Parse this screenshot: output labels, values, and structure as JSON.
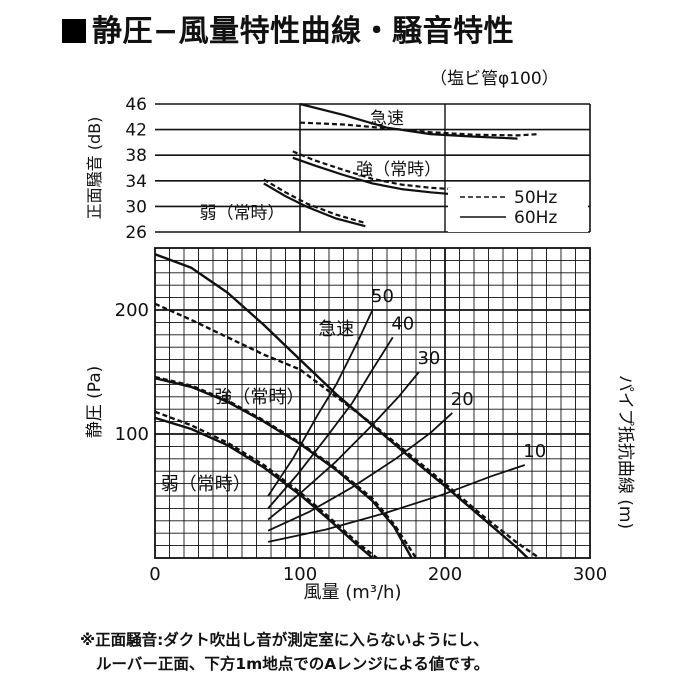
{
  "title": "静圧−風量特性曲線・騒音特性",
  "pipe_note": "（塩ビ管φ100）",
  "footnote": {
    "line1": "※正面騒音:ダクト吹出し音が測定室に入らないようにし、",
    "line2": "ルーバー正面、下方1m地点でのAレンジによる値です。"
  },
  "chart_data": [
    {
      "type": "line",
      "name": "noise",
      "ylabel": "正面騒音 (dB)",
      "x_ticks": [
        0,
        100,
        200,
        300
      ],
      "y_ticks": [
        26,
        30,
        34,
        38,
        42,
        46
      ],
      "xlim": [
        0,
        300
      ],
      "ylim": [
        26,
        46
      ],
      "grid": true,
      "legend": {
        "placement": "bottom-right",
        "entries": [
          {
            "label": "50Hz",
            "style": "dashed"
          },
          {
            "label": "60Hz",
            "style": "solid"
          }
        ]
      },
      "annotations": [
        "急速",
        "強（常時）",
        "弱（常時）"
      ],
      "series": [
        {
          "mode": "急速",
          "freq": "60Hz",
          "x": [
            100,
            130,
            160,
            190,
            220,
            250
          ],
          "y": [
            46,
            44.3,
            42.3,
            41.3,
            40.9,
            40.6
          ]
        },
        {
          "mode": "急速",
          "freq": "50Hz",
          "x": [
            100,
            130,
            160,
            190,
            220,
            250,
            265
          ],
          "y": [
            43.1,
            42.8,
            42.2,
            41.6,
            41.2,
            41.1,
            41.3
          ]
        },
        {
          "mode": "強（常時）",
          "freq": "60Hz",
          "x": [
            95,
            110,
            130,
            150,
            170,
            190,
            205
          ],
          "y": [
            37.6,
            36.4,
            34.9,
            33.6,
            32.7,
            32.2,
            31.9
          ]
        },
        {
          "mode": "強（常時）",
          "freq": "50Hz",
          "x": [
            95,
            110,
            130,
            150,
            170,
            190,
            205
          ],
          "y": [
            38.6,
            37.2,
            35.7,
            34.3,
            33.4,
            32.9,
            32.7
          ]
        },
        {
          "mode": "弱（常時）",
          "freq": "60Hz",
          "x": [
            75,
            90,
            105,
            125,
            145
          ],
          "y": [
            33.6,
            31.6,
            29.9,
            28.1,
            26.9
          ]
        },
        {
          "mode": "弱（常時）",
          "freq": "50Hz",
          "x": [
            75,
            90,
            105,
            125,
            145
          ],
          "y": [
            34.2,
            32.2,
            30.4,
            28.7,
            27.4
          ]
        }
      ]
    },
    {
      "type": "line",
      "name": "pressure",
      "ylabel": "静圧 (Pa)",
      "xlabel": "風量 (m³/h)",
      "y2label": "パイプ抵抗曲線 (m)",
      "x_ticks": [
        0,
        100,
        200,
        300
      ],
      "y_ticks": [
        0,
        100,
        200
      ],
      "xlim": [
        0,
        300
      ],
      "ylim": [
        0,
        250
      ],
      "grid": true,
      "annotations": [
        "急速",
        "強（常時）",
        "弱（常時）"
      ],
      "series": [
        {
          "mode": "急速",
          "freq": "60Hz",
          "x": [
            0,
            25,
            50,
            75,
            100,
            125,
            150,
            175,
            200,
            225,
            250,
            257
          ],
          "y": [
            245,
            234,
            214,
            188,
            160,
            132,
            107,
            82,
            58,
            33,
            8,
            0
          ]
        },
        {
          "mode": "急速",
          "freq": "50Hz",
          "x": [
            0,
            25,
            50,
            75,
            100,
            125,
            150,
            175,
            200,
            225,
            250,
            265
          ],
          "y": [
            205,
            192,
            178,
            164,
            152,
            130,
            108,
            84,
            60,
            35,
            12,
            0
          ]
        },
        {
          "mode": "強（常時）",
          "freq": "60Hz",
          "x": [
            0,
            25,
            50,
            75,
            100,
            125,
            150,
            165,
            177
          ],
          "y": [
            145,
            138,
            126,
            110,
            92,
            71,
            46,
            25,
            0
          ]
        },
        {
          "mode": "強（常時）",
          "freq": "50Hz",
          "x": [
            0,
            25,
            50,
            75,
            100,
            125,
            150,
            165,
            180
          ],
          "y": [
            146,
            139,
            127,
            111,
            93,
            72,
            48,
            27,
            0
          ]
        },
        {
          "mode": "弱（常時）",
          "freq": "60Hz",
          "x": [
            0,
            25,
            50,
            75,
            100,
            120,
            140,
            150
          ],
          "y": [
            113,
            104,
            91,
            73,
            51,
            31,
            10,
            0
          ]
        },
        {
          "mode": "弱（常時）",
          "freq": "50Hz",
          "x": [
            0,
            25,
            50,
            75,
            100,
            120,
            140,
            153
          ],
          "y": [
            118,
            107,
            93,
            75,
            53,
            33,
            12,
            0
          ]
        }
      ],
      "pipe_resistance": [
        {
          "label": "50",
          "x": [
            78,
            95,
            112,
            125,
            140,
            150
          ],
          "y": [
            50,
            80,
            115,
            140,
            175,
            200
          ]
        },
        {
          "label": "40",
          "x": [
            78,
            98,
            118,
            136,
            150,
            164
          ],
          "y": [
            40,
            67,
            97,
            125,
            152,
            178
          ]
        },
        {
          "label": "30",
          "x": [
            78,
            100,
            125,
            148,
            168,
            182
          ],
          "y": [
            31,
            52,
            78,
            105,
            130,
            150
          ]
        },
        {
          "label": "20",
          "x": [
            78,
            106,
            136,
            166,
            190,
            205
          ],
          "y": [
            22,
            37,
            57,
            80,
            101,
            117
          ]
        },
        {
          "label": "10",
          "x": [
            78,
            118,
            158,
            198,
            232,
            255
          ],
          "y": [
            13,
            23,
            36,
            51,
            66,
            75
          ]
        }
      ]
    }
  ]
}
